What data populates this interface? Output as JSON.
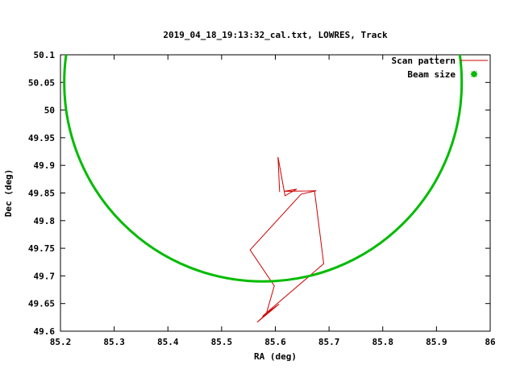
{
  "chart_data": {
    "type": "line",
    "title": "2019_04_18_19:13:32_cal.txt, LOWRES, Track",
    "xlabel": "RA (deg)",
    "ylabel": "Dec (deg)",
    "xlim": [
      85.2,
      86.0
    ],
    "ylim": [
      49.6,
      50.1
    ],
    "x_tick_values": [
      85.2,
      85.3,
      85.4,
      85.5,
      85.6,
      85.7,
      85.8,
      85.9,
      86
    ],
    "x_tick_labels": [
      "85.2",
      "85.3",
      "85.4",
      "85.5",
      "85.6",
      "85.7",
      "85.8",
      "85.9",
      "86"
    ],
    "y_tick_values": [
      49.6,
      49.65,
      49.7,
      49.75,
      49.8,
      49.85,
      49.9,
      49.95,
      50,
      50.05,
      50.1
    ],
    "y_tick_labels": [
      "49.6",
      "49.65",
      "49.7",
      "49.75",
      "49.8",
      "49.85",
      "49.9",
      "49.95",
      "50",
      "50.05",
      "50.1"
    ],
    "grid": false,
    "legend_position": "top-right-inside",
    "series": [
      {
        "name": "Scan pattern",
        "type": "line",
        "color": "#cc0000",
        "stroke_width": 1,
        "points": [
          [
            85.608,
            49.852
          ],
          [
            85.605,
            49.915
          ],
          [
            85.618,
            49.845
          ],
          [
            85.64,
            49.857
          ],
          [
            85.617,
            49.853
          ],
          [
            85.676,
            49.854
          ],
          [
            85.648,
            49.848
          ],
          [
            85.553,
            49.747
          ],
          [
            85.598,
            49.682
          ],
          [
            85.583,
            49.631
          ],
          [
            85.566,
            49.616
          ],
          [
            85.607,
            49.649
          ],
          [
            85.576,
            49.627
          ],
          [
            85.69,
            49.722
          ],
          [
            85.673,
            49.854
          ]
        ]
      },
      {
        "name": "Beam size",
        "type": "ellipse",
        "color": "#00bb00",
        "stroke_width": 3,
        "center": [
          85.577,
          50.05
        ],
        "rx": 0.37,
        "ry": 0.36
      }
    ]
  },
  "colors": {
    "background": "#ffffff",
    "axis": "#000000",
    "scan_pattern": "#cc0000",
    "beam_size": "#00bb00"
  }
}
